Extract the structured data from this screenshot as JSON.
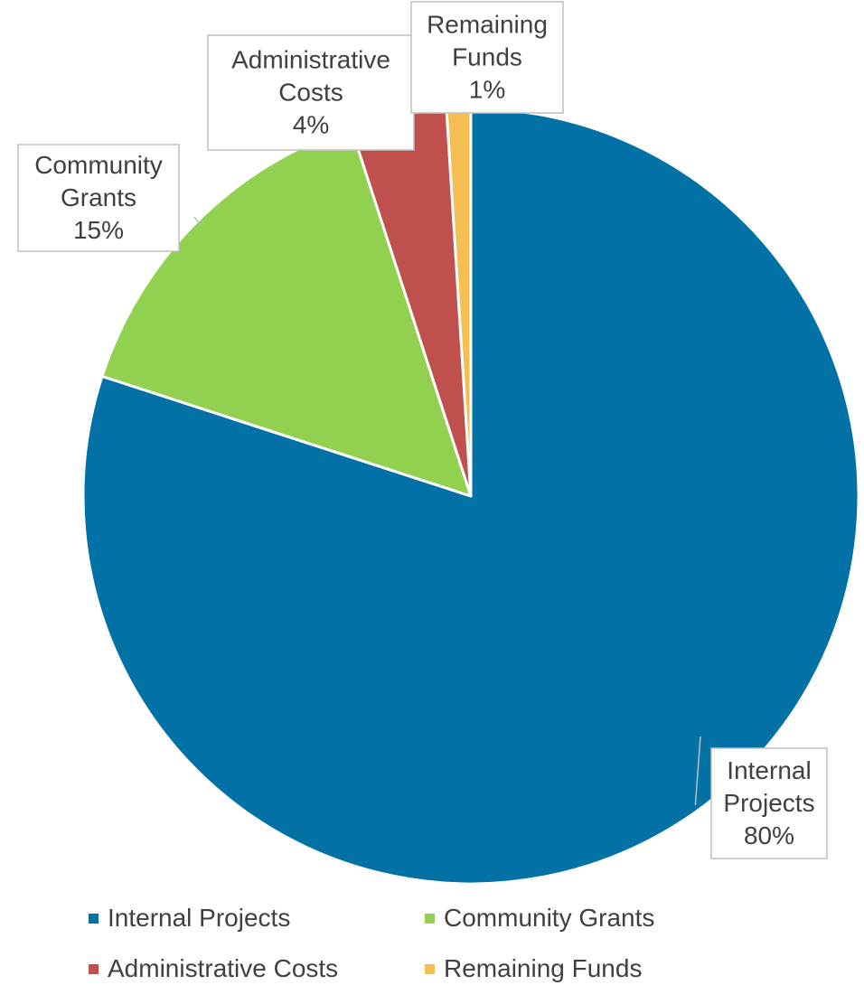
{
  "chart_data": {
    "type": "pie",
    "title": "",
    "legend_position": "bottom",
    "start_angle_deg": 0,
    "direction": "clockwise",
    "slices": [
      {
        "name": "Internal Projects",
        "value": 80,
        "label_lines": [
          "Internal",
          "Projects",
          "80%"
        ],
        "color": "#0271A5"
      },
      {
        "name": "Community Grants",
        "value": 15,
        "label_lines": [
          "Community",
          "Grants",
          "15%"
        ],
        "color": "#92D050"
      },
      {
        "name": "Administrative Costs",
        "value": 4,
        "label_lines": [
          "Administrative",
          "Costs",
          "4%"
        ],
        "color": "#C0504D"
      },
      {
        "name": "Remaining Funds",
        "value": 1,
        "label_lines": [
          "Remaining",
          "Funds",
          "1%"
        ],
        "color": "#F5BE52"
      }
    ],
    "legend": [
      "Internal Projects",
      "Community Grants",
      "Administrative Costs",
      "Remaining Funds"
    ]
  }
}
